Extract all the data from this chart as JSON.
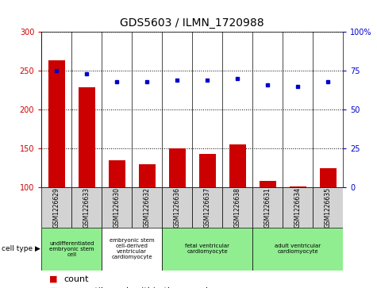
{
  "title": "GDS5603 / ILMN_1720988",
  "samples": [
    "GSM1226629",
    "GSM1226633",
    "GSM1226630",
    "GSM1226632",
    "GSM1226636",
    "GSM1226637",
    "GSM1226638",
    "GSM1226631",
    "GSM1226634",
    "GSM1226635"
  ],
  "counts": [
    263,
    228,
    135,
    130,
    150,
    143,
    155,
    108,
    101,
    124
  ],
  "percentiles": [
    75,
    73,
    68,
    68,
    69,
    69,
    70,
    66,
    65,
    68
  ],
  "ylim_left": [
    100,
    300
  ],
  "ylim_right": [
    0,
    100
  ],
  "yticks_left": [
    100,
    150,
    200,
    250,
    300
  ],
  "yticks_right": [
    0,
    25,
    50,
    75,
    100
  ],
  "cell_types": [
    {
      "label": "undifferentiated\nembryonic stem\ncell",
      "span": [
        0,
        2
      ],
      "color": "#90ee90"
    },
    {
      "label": "embryonic stem\ncell-derived\nventricular\ncardiomyocyte",
      "span": [
        2,
        4
      ],
      "color": "#ffffff"
    },
    {
      "label": "fetal ventricular\ncardiomyocyte",
      "span": [
        4,
        7
      ],
      "color": "#90ee90"
    },
    {
      "label": "adult ventricular\ncardiomyocyte",
      "span": [
        7,
        10
      ],
      "color": "#90ee90"
    }
  ],
  "bar_color": "#cc0000",
  "dot_color": "#0000cc",
  "cell_type_bg": "#d3d3d3",
  "bar_width": 0.55,
  "title_fontsize": 10,
  "tick_fontsize": 7,
  "legend_fontsize": 8
}
